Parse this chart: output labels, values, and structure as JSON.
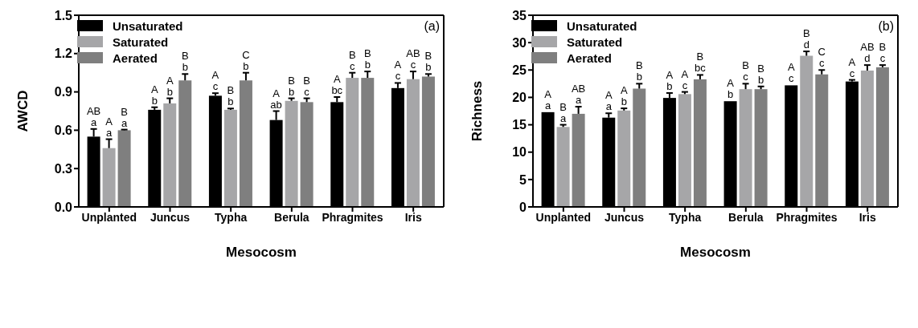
{
  "chart_data": [
    {
      "type": "bar",
      "xlabel": "Mesocosm",
      "ylabel": "AWCD",
      "categories": [
        "Unplanted",
        "Juncus",
        "Typha",
        "Berula",
        "Phragmites",
        "Iris"
      ],
      "legend": "top left",
      "ylim": [
        0,
        1.5
      ],
      "yticks": [
        {
          "value": 0,
          "label": "0.0"
        },
        0.3,
        0.6,
        0.9,
        1.2,
        1.5
      ],
      "annotations": [
        "(a)"
      ],
      "series": [
        {
          "name": "Unsaturated",
          "color": "#000000",
          "values": [
            0.55,
            0.76,
            0.87,
            0.68,
            0.82,
            0.93
          ],
          "errors": [
            [
              0.55,
              0.61
            ],
            [
              0.76,
              0.78
            ],
            [
              0.87,
              0.89
            ],
            [
              0.68,
              0.75
            ],
            [
              0.82,
              0.86
            ],
            [
              0.93,
              0.97
            ]
          ],
          "value_labels": [
            "AB a",
            "A b",
            "A c",
            "A ab",
            "A bc",
            "A c"
          ]
        },
        {
          "name": "Saturated",
          "color": "#a6a6a8",
          "values": [
            0.46,
            0.81,
            0.76,
            0.83,
            1.01,
            1.0
          ],
          "errors": [
            [
              0.46,
              0.53
            ],
            [
              0.81,
              0.85
            ],
            [
              0.76,
              0.77
            ],
            [
              0.83,
              0.85
            ],
            [
              1.01,
              1.05
            ],
            [
              1.0,
              1.06
            ]
          ],
          "value_labels": [
            "A a",
            "A b",
            "B b",
            "B b",
            "B c",
            "AB c"
          ]
        },
        {
          "name": "Aerated",
          "color": "#7f7f7f",
          "values": [
            0.6,
            0.99,
            0.99,
            0.82,
            1.01,
            1.02
          ],
          "errors": [
            [
              0.6,
              0.605
            ],
            [
              0.99,
              1.04
            ],
            [
              0.99,
              1.05
            ],
            [
              0.82,
              0.85
            ],
            [
              1.01,
              1.06
            ],
            [
              1.02,
              1.04
            ]
          ],
          "value_labels": [
            "B a",
            "B b",
            "C b",
            "B c",
            "B b",
            "B b"
          ]
        }
      ]
    },
    {
      "type": "bar",
      "xlabel": "Mesocosm",
      "ylabel": "Richness",
      "categories": [
        "Unplanted",
        "Juncus",
        "Typha",
        "Berula",
        "Phragmites",
        "Iris"
      ],
      "legend": "top left",
      "ylim": [
        0,
        35
      ],
      "yticks": [
        0,
        5,
        10,
        15,
        20,
        25,
        30,
        35
      ],
      "annotations": [
        "(b)"
      ],
      "series": [
        {
          "name": "Unsaturated",
          "color": "#000000",
          "values": [
            17.3,
            16.3,
            19.9,
            19.3,
            22.2,
            22.9
          ],
          "errors": [
            null,
            [
              16.3,
              17.1
            ],
            [
              19.9,
              20.8
            ],
            null,
            null,
            [
              22.9,
              23.2
            ]
          ],
          "value_labels": [
            "A a",
            "A a",
            "A b",
            "A b",
            "A c",
            "A c"
          ]
        },
        {
          "name": "Saturated",
          "color": "#a6a6a8",
          "values": [
            14.6,
            17.6,
            20.6,
            21.5,
            27.6,
            24.9
          ],
          "errors": [
            [
              14.6,
              15.0
            ],
            [
              17.6,
              18.0
            ],
            [
              20.6,
              21.0
            ],
            [
              21.5,
              22.5
            ],
            [
              27.6,
              28.4
            ],
            [
              24.9,
              25.9
            ]
          ],
          "value_labels": [
            "B a",
            "A b",
            "A c",
            "B c",
            "B d",
            "AB d"
          ]
        },
        {
          "name": "Aerated",
          "color": "#7f7f7f",
          "values": [
            17.0,
            21.6,
            23.3,
            21.5,
            24.2,
            25.5
          ],
          "errors": [
            [
              17.0,
              18.3
            ],
            [
              21.6,
              22.5
            ],
            [
              23.3,
              24.1
            ],
            [
              21.5,
              22.0
            ],
            [
              24.2,
              25.0
            ],
            [
              25.5,
              25.9
            ]
          ],
          "value_labels": [
            "AB a",
            "B b",
            "B bc",
            "B b",
            "C c",
            "B c"
          ]
        }
      ]
    }
  ]
}
